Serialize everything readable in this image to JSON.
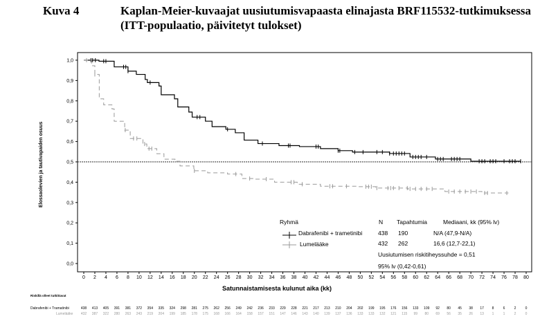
{
  "figure": {
    "label": "Kuva 4",
    "title_line1": "Kaplan-Meier-kuvaajat uusiutumisvapaasta elinajasta BRF115532-tutkimuksessa",
    "title_line2": "(ITT-populaatio, päivitetyt tulokset)"
  },
  "chart_data": {
    "type": "line",
    "xlabel": "Satunnaistamisesta kulunut aika (kk)",
    "ylabel": "Elossaolevien  ja tautivapaiden osuus",
    "xlim": [
      0,
      80
    ],
    "ylim": [
      0,
      1
    ],
    "xticks": [
      0,
      2,
      4,
      6,
      8,
      10,
      12,
      14,
      16,
      18,
      20,
      22,
      24,
      26,
      28,
      30,
      32,
      34,
      36,
      38,
      40,
      42,
      44,
      46,
      48,
      50,
      52,
      54,
      56,
      58,
      60,
      62,
      64,
      66,
      68,
      70,
      72,
      74,
      76,
      78,
      80
    ],
    "yticks": [
      "0,0",
      "0,1",
      "0,2",
      "0,3",
      "0,4",
      "0,5",
      "0,6",
      "0,7",
      "0,8",
      "0,9",
      "1,0"
    ],
    "reference_line": 0.5,
    "colors": {
      "dabrafenib": "#000000",
      "placebo": "#999999"
    },
    "series": [
      {
        "name": "Dabrafenibi + trametinibi",
        "style": "solid",
        "x": [
          0,
          2.75,
          5.5,
          8,
          9.5,
          11.1,
          11.5,
          13.6,
          14,
          16.4,
          17,
          19,
          19.6,
          22,
          23.2,
          25.7,
          27.4,
          29,
          31.5,
          35.3,
          39,
          42.8,
          46,
          48.6,
          55.3,
          59,
          63.6,
          67.8,
          70,
          79
        ],
        "y": [
          1.0,
          0.995,
          0.967,
          0.946,
          0.93,
          0.905,
          0.89,
          0.873,
          0.83,
          0.81,
          0.77,
          0.745,
          0.72,
          0.7,
          0.673,
          0.66,
          0.643,
          0.607,
          0.59,
          0.58,
          0.575,
          0.565,
          0.555,
          0.548,
          0.541,
          0.524,
          0.514,
          0.514,
          0.503,
          0.503
        ],
        "censored": [
          1.3,
          1.6,
          2.1,
          3.6,
          4.0,
          7.2,
          7.6,
          8.0,
          12.0,
          20.5,
          21.0,
          26.0,
          32.3,
          37.0,
          37.3,
          42.0,
          42.4,
          46.0,
          46.3,
          49.0,
          50.5,
          53.0,
          54.0,
          55.3,
          56.0,
          56.5,
          57.0,
          57.5,
          58.0,
          59.5,
          60.0,
          60.5,
          61.0,
          62.0,
          64.0,
          64.5,
          65.0,
          66.5,
          67.0,
          67.5,
          68.0,
          71.5,
          72.0,
          72.5,
          73.5,
          74.0,
          74.5,
          76.0,
          77.0,
          77.5,
          78.0,
          79.0
        ]
      },
      {
        "name": "Lumelääke",
        "style": "dashed",
        "x": [
          0,
          1.4,
          2,
          2.8,
          3.6,
          5.1,
          5.5,
          7.4,
          8.4,
          10.7,
          11.4,
          13.2,
          14.5,
          16.5,
          17.4,
          19.9,
          22.4,
          26,
          28.6,
          31,
          34.5,
          38.6,
          42.8,
          49.5,
          52.8,
          58.6,
          65.3,
          72,
          76.8
        ],
        "y": [
          1.0,
          0.973,
          0.93,
          0.81,
          0.78,
          0.76,
          0.7,
          0.656,
          0.615,
          0.588,
          0.565,
          0.54,
          0.513,
          0.503,
          0.48,
          0.456,
          0.446,
          0.44,
          0.418,
          0.415,
          0.4,
          0.39,
          0.38,
          0.378,
          0.371,
          0.367,
          0.354,
          0.347,
          0.347
        ],
        "censored": [
          0.5,
          2.0,
          7.5,
          9.0,
          9.6,
          11.0,
          11.8,
          12.3,
          20.0,
          27.5,
          30.0,
          33.0,
          37.5,
          38.0,
          39.5,
          44.5,
          45.0,
          47.5,
          51.0,
          51.5,
          52.0,
          53.0,
          55.0,
          55.5,
          56.0,
          57.0,
          58.5,
          59.0,
          60.0,
          61.0,
          62.0,
          63.0,
          66.0,
          67.0,
          68.0,
          69.0,
          70.0,
          71.0,
          72.5,
          73.0,
          76.5
        ]
      }
    ],
    "legend": {
      "group_header": "Ryhmä",
      "col_n": "N",
      "col_events": "Tapahtumia",
      "col_median": "Mediaani, kk (95% lv)",
      "rows": [
        {
          "name": "Dabrafenibi + trametinibi",
          "n": "438",
          "events": "190",
          "median": "N/A (47,9-N/A)"
        },
        {
          "name": "Lumelääke",
          "n": "432",
          "events": "262",
          "median": "16,6 (12,7-22,1)"
        }
      ],
      "hazard_ratio": "Uusiutumisen riskitiheyssuhde = 0,51",
      "ci": "95% lv (0,42-0,61)",
      "placement": "bottom-right"
    },
    "at_risk": {
      "title": "Riskillä olleet tutkittavat",
      "rows": [
        {
          "label": "Dabrafenibi  + Tramatinibi",
          "values": [
            438,
            413,
            405,
            391,
            381,
            372,
            354,
            335,
            324,
            298,
            281,
            275,
            262,
            256,
            249,
            242,
            236,
            233,
            229,
            228,
            221,
            217,
            213,
            210,
            204,
            202,
            199,
            195,
            176,
            156,
            133,
            109,
            92,
            80,
            45,
            38,
            17,
            8,
            6,
            2,
            0
          ]
        },
        {
          "label": "Lumelääke",
          "values": [
            432,
            387,
            322,
            280,
            263,
            243,
            219,
            204,
            199,
            185,
            178,
            175,
            168,
            166,
            164,
            158,
            157,
            151,
            147,
            146,
            143,
            140,
            139,
            137,
            136,
            133,
            133,
            132,
            121,
            115,
            99,
            80,
            69,
            56,
            35,
            26,
            13,
            1,
            1,
            2,
            0
          ]
        }
      ]
    }
  }
}
